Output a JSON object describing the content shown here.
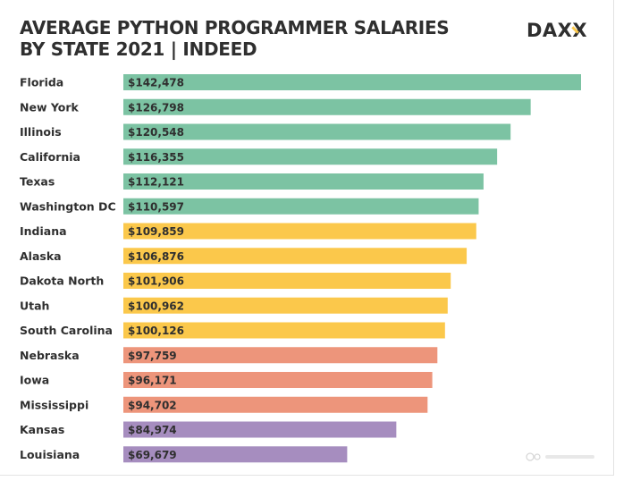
{
  "header": {
    "title": "AVERAGE PYTHON PROGRAMMER SALARIES BY STATE 2021 | INDEED",
    "logo_text": "DAXX"
  },
  "colors": {
    "green": "#7cc3a3",
    "yellow": "#fbc84b",
    "salmon": "#ed957b",
    "purple": "#a68dbf",
    "text": "#2f2f2f"
  },
  "chart_data": {
    "type": "bar",
    "orientation": "horizontal",
    "title": "AVERAGE PYTHON PROGRAMMER SALARIES BY STATE 2021 | INDEED",
    "xlabel": "",
    "ylabel": "",
    "grid": false,
    "legend": "none",
    "xlim": [
      0,
      142478
    ],
    "categories": [
      "Florida",
      "New York",
      "Illinois",
      "California",
      "Texas",
      "Washington DC",
      "Indiana",
      "Alaska",
      "Dakota North",
      "Utah",
      "South Carolina",
      "Nebraska",
      "Iowa",
      "Mississippi",
      "Kansas",
      "Louisiana"
    ],
    "values": [
      142478,
      126798,
      120548,
      116355,
      112121,
      110597,
      109859,
      106876,
      101906,
      100962,
      100126,
      97759,
      96171,
      94702,
      84974,
      69679
    ],
    "value_labels": [
      "$142,478",
      "$126,798",
      "$120,548",
      "$116,355",
      "$112,121",
      "$110,597",
      "$109,859",
      "$106,876",
      "$101,906",
      "$100,962",
      "$100,126",
      "$97,759",
      "$96,171",
      "$94,702",
      "$84,974",
      "$69,679"
    ],
    "bar_colors": [
      "#7cc3a3",
      "#7cc3a3",
      "#7cc3a3",
      "#7cc3a3",
      "#7cc3a3",
      "#7cc3a3",
      "#fbc84b",
      "#fbc84b",
      "#fbc84b",
      "#fbc84b",
      "#fbc84b",
      "#ed957b",
      "#ed957b",
      "#ed957b",
      "#a68dbf",
      "#a68dbf"
    ]
  }
}
